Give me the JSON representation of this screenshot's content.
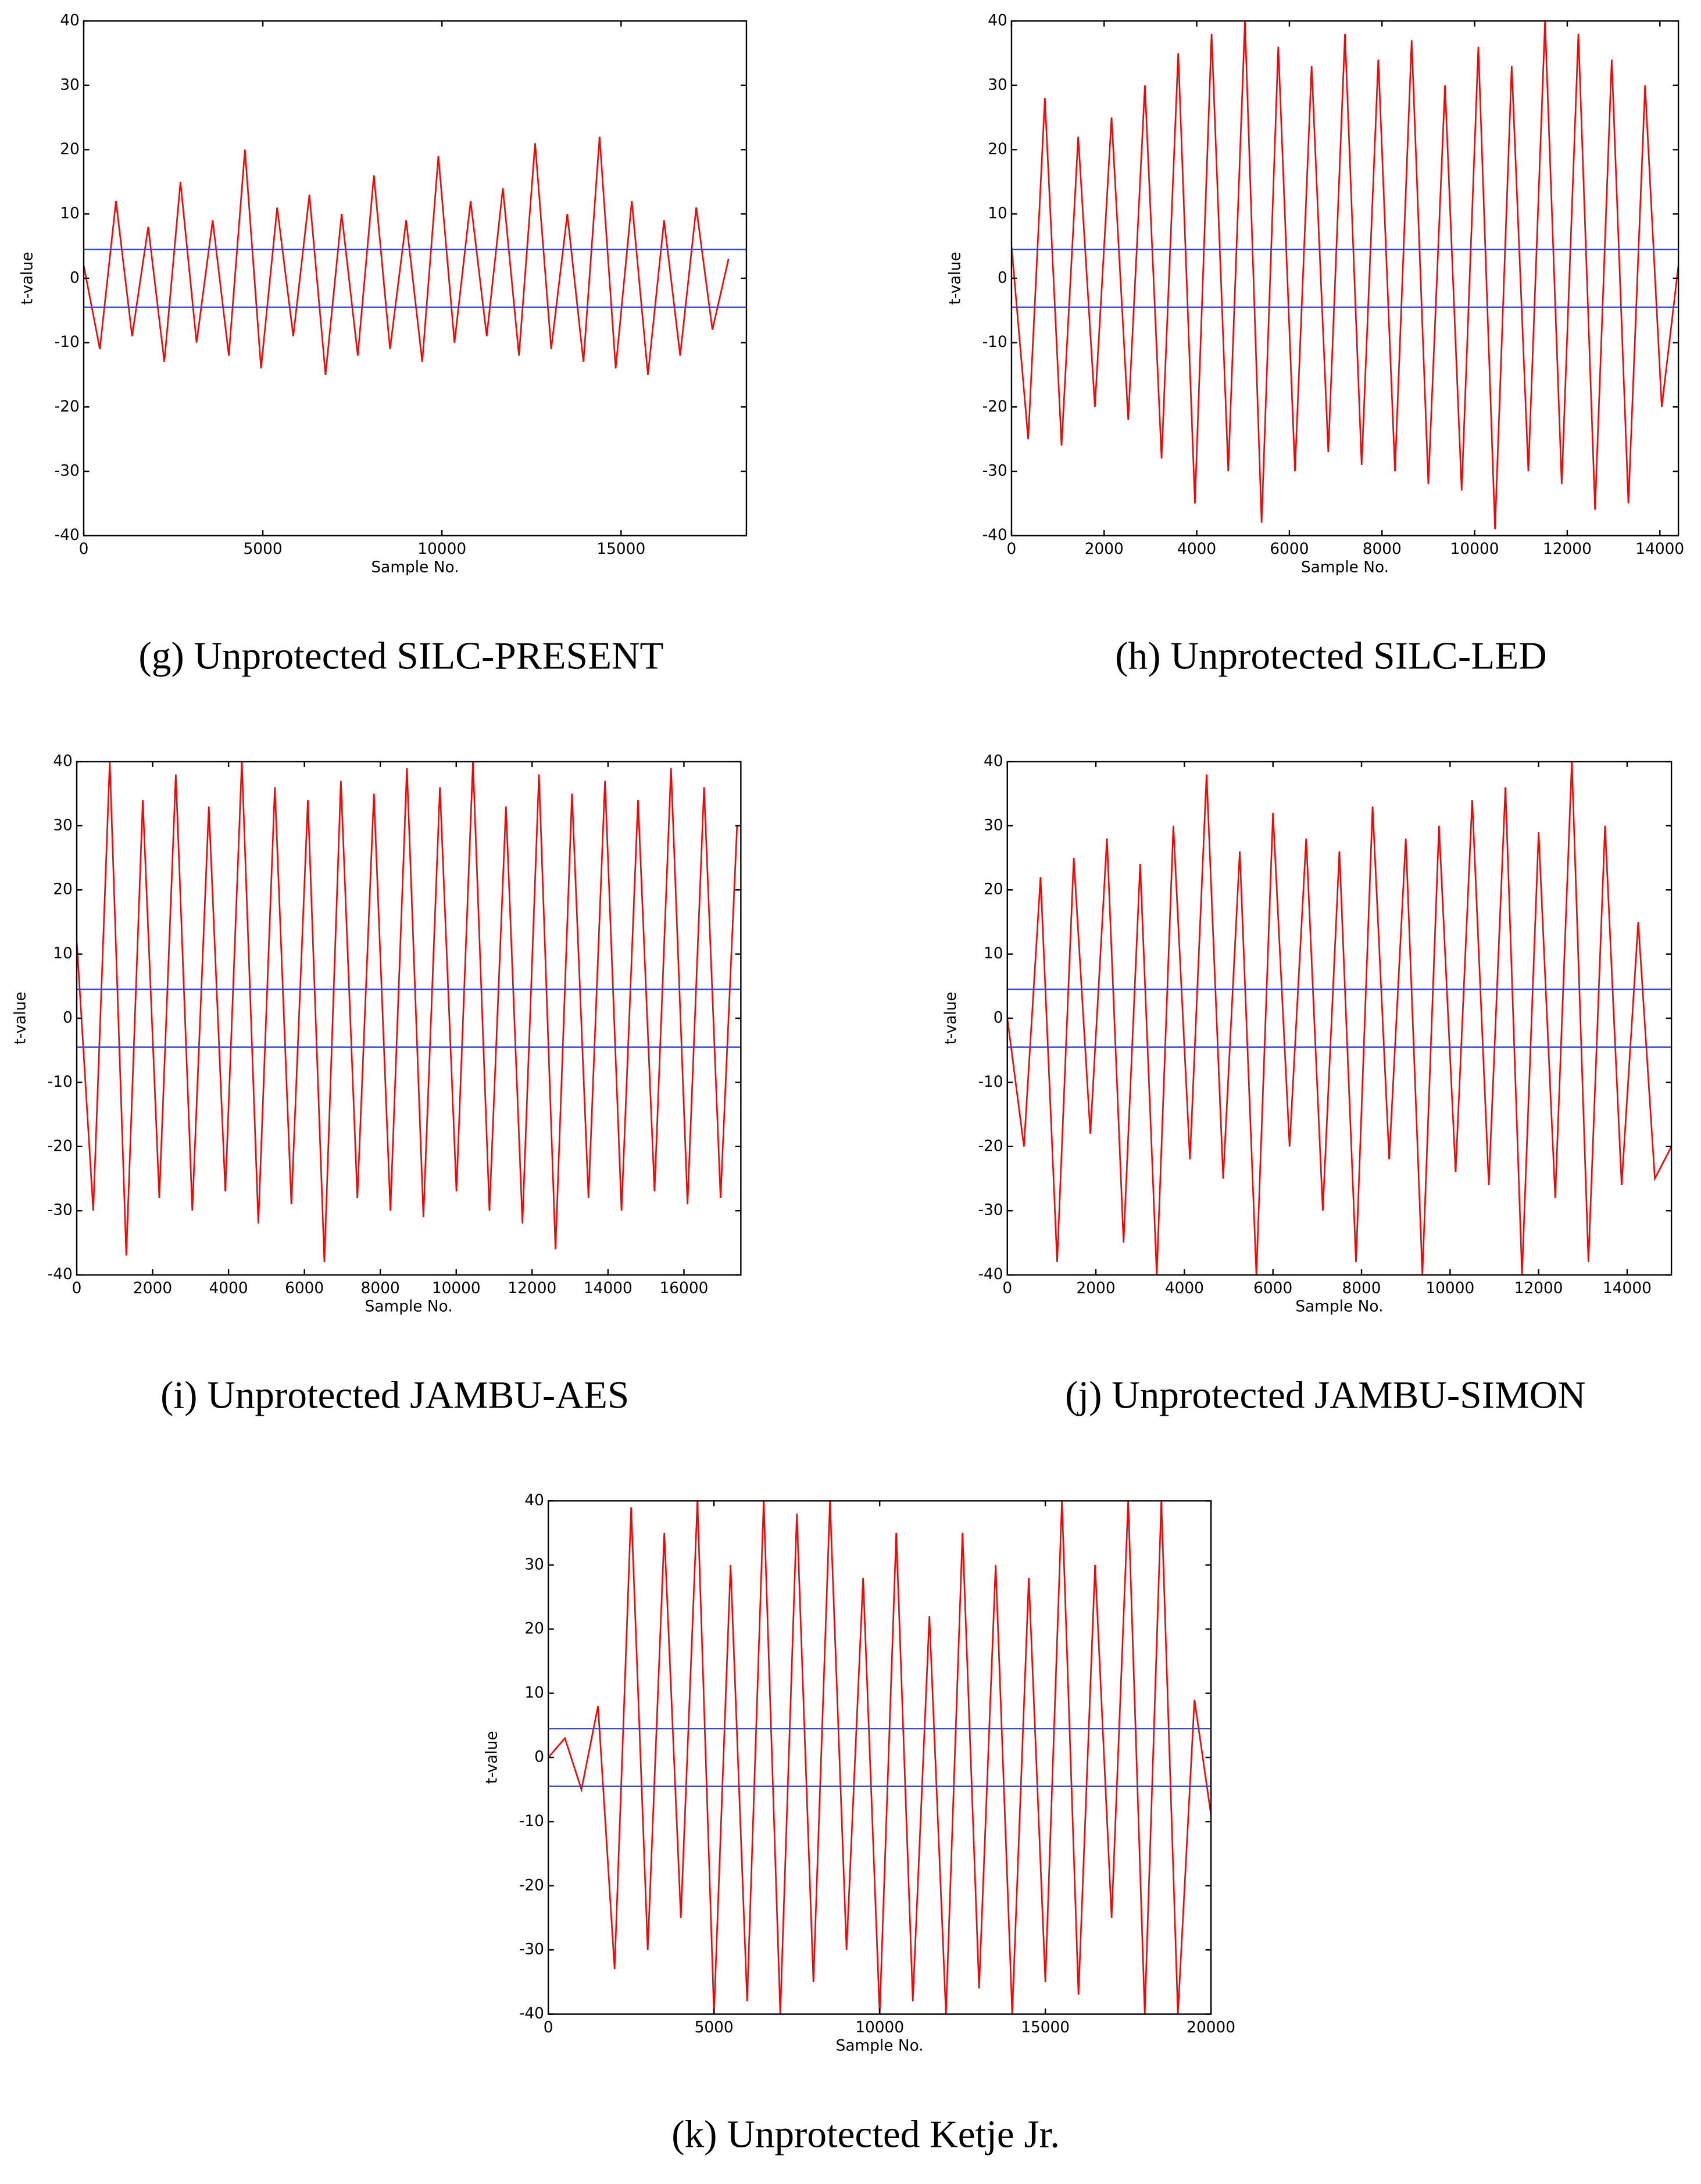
{
  "chart_data": [
    {
      "type": "line",
      "title": "(g) Unprotected SILC-PRESENT",
      "x_label": "Sample No.",
      "y_label": "t-value",
      "xlim": [
        0,
        18500
      ],
      "xticks": [
        0,
        5000,
        10000,
        15000
      ],
      "ylim": [
        -40,
        40
      ],
      "yticks": [
        -40,
        -30,
        -20,
        -10,
        0,
        10,
        20,
        30,
        40
      ],
      "thresholds": [
        4.5,
        -4.5
      ],
      "threshold_color": "#3344cc",
      "x": [
        0,
        450,
        900,
        1350,
        1800,
        2250,
        2700,
        3150,
        3600,
        4050,
        4500,
        4950,
        5400,
        5850,
        6300,
        6750,
        7200,
        7650,
        8100,
        8550,
        9000,
        9450,
        9900,
        10350,
        10800,
        11250,
        11700,
        12150,
        12600,
        13050,
        13500,
        13950,
        14400,
        14850,
        15300,
        15750,
        16200,
        16650,
        17100,
        17550,
        18000
      ],
      "series": [
        {
          "color": "#ff0000",
          "values": [
            2,
            -11,
            12,
            -9,
            8,
            -13,
            15,
            -10,
            9,
            -12,
            20,
            -14,
            11,
            -9,
            13,
            -15,
            10,
            -12,
            16,
            -11,
            9,
            -13,
            19,
            -10,
            12,
            -9,
            14,
            -12,
            21,
            -11,
            10,
            -13,
            22,
            -14,
            12,
            -15,
            9,
            -12,
            11,
            -8,
            3
          ]
        }
      ]
    },
    {
      "type": "line",
      "title": "(h) Unprotected SILC-LED",
      "x_label": "Sample No.",
      "y_label": "t-value",
      "xlim": [
        0,
        14400
      ],
      "xticks": [
        0,
        2000,
        4000,
        6000,
        8000,
        10000,
        12000,
        14000
      ],
      "ylim": [
        -40,
        40
      ],
      "yticks": [
        -40,
        -30,
        -20,
        -10,
        0,
        10,
        20,
        30,
        40
      ],
      "thresholds": [
        4.5,
        -4.5
      ],
      "threshold_color": "#3344cc",
      "x": [
        0,
        360,
        720,
        1080,
        1440,
        1800,
        2160,
        2520,
        2880,
        3240,
        3600,
        3960,
        4320,
        4680,
        5040,
        5400,
        5760,
        6120,
        6480,
        6840,
        7200,
        7560,
        7920,
        8280,
        8640,
        9000,
        9360,
        9720,
        10080,
        10440,
        10800,
        11160,
        11520,
        11880,
        12240,
        12600,
        12960,
        13320,
        13680,
        14040,
        14400
      ],
      "series": [
        {
          "color": "#ff0000",
          "values": [
            5,
            -25,
            28,
            -26,
            22,
            -20,
            25,
            -22,
            30,
            -28,
            35,
            -35,
            38,
            -30,
            40,
            -38,
            36,
            -30,
            33,
            -27,
            38,
            -29,
            34,
            -30,
            37,
            -32,
            30,
            -33,
            36,
            -39,
            33,
            -30,
            40,
            -32,
            38,
            -36,
            34,
            -35,
            30,
            -20,
            2
          ]
        }
      ]
    },
    {
      "type": "line",
      "title": "(i) Unprotected JAMBU-AES",
      "x_label": "Sample No.",
      "y_label": "t-value",
      "xlim": [
        0,
        17500
      ],
      "xticks": [
        0,
        2000,
        4000,
        6000,
        8000,
        10000,
        12000,
        14000,
        16000
      ],
      "ylim": [
        -40,
        40
      ],
      "yticks": [
        -40,
        -30,
        -20,
        -10,
        0,
        10,
        20,
        30,
        40
      ],
      "thresholds": [
        4.5,
        -4.5
      ],
      "threshold_color": "#3344cc",
      "x": [
        0,
        435,
        870,
        1305,
        1740,
        2175,
        2610,
        3045,
        3480,
        3915,
        4350,
        4785,
        5220,
        5655,
        6090,
        6525,
        6960,
        7395,
        7830,
        8265,
        8700,
        9135,
        9570,
        10005,
        10440,
        10875,
        11310,
        11745,
        12180,
        12615,
        13050,
        13485,
        13920,
        14355,
        14790,
        15225,
        15660,
        16095,
        16530,
        16965,
        17400
      ],
      "series": [
        {
          "color": "#ff0000",
          "values": [
            12,
            -30,
            40,
            -37,
            34,
            -28,
            38,
            -30,
            33,
            -27,
            40,
            -32,
            36,
            -29,
            34,
            -38,
            37,
            -28,
            35,
            -30,
            39,
            -31,
            36,
            -27,
            40,
            -30,
            33,
            -32,
            38,
            -36,
            35,
            -28,
            37,
            -30,
            34,
            -27,
            39,
            -29,
            36,
            -28,
            30
          ]
        }
      ]
    },
    {
      "type": "line",
      "title": "(j) Unprotected JAMBU-SIMON",
      "x_label": "Sample No.",
      "y_label": "t-value",
      "xlim": [
        0,
        15000
      ],
      "xticks": [
        0,
        2000,
        4000,
        6000,
        8000,
        10000,
        12000,
        14000
      ],
      "ylim": [
        -40,
        40
      ],
      "yticks": [
        -40,
        -30,
        -20,
        -10,
        0,
        10,
        20,
        30,
        40
      ],
      "thresholds": [
        4.5,
        -4.5
      ],
      "threshold_color": "#3344cc",
      "x": [
        0,
        375,
        750,
        1125,
        1500,
        1875,
        2250,
        2625,
        3000,
        3375,
        3750,
        4125,
        4500,
        4875,
        5250,
        5625,
        6000,
        6375,
        6750,
        7125,
        7500,
        7875,
        8250,
        8625,
        9000,
        9375,
        9750,
        10125,
        10500,
        10875,
        11250,
        11625,
        12000,
        12375,
        12750,
        13125,
        13500,
        13875,
        14250,
        14625,
        15000
      ],
      "series": [
        {
          "color": "#ff0000",
          "values": [
            0,
            -20,
            22,
            -38,
            25,
            -18,
            28,
            -35,
            24,
            -40,
            30,
            -22,
            38,
            -25,
            26,
            -40,
            32,
            -20,
            28,
            -30,
            26,
            -38,
            33,
            -22,
            28,
            -40,
            30,
            -24,
            34,
            -26,
            36,
            -40,
            29,
            -28,
            40,
            -38,
            30,
            -26,
            15,
            -25,
            -20
          ]
        }
      ]
    },
    {
      "type": "line",
      "title": "(k) Unprotected Ketje Jr.",
      "x_label": "Sample No.",
      "y_label": "t-value",
      "xlim": [
        0,
        20000
      ],
      "xticks": [
        0,
        5000,
        10000,
        15000,
        20000
      ],
      "ylim": [
        -40,
        40
      ],
      "yticks": [
        -40,
        -30,
        -20,
        -10,
        0,
        10,
        20,
        30,
        40
      ],
      "thresholds": [
        4.5,
        -4.5
      ],
      "threshold_color": "#3344cc",
      "x": [
        0,
        500,
        1000,
        1500,
        2000,
        2500,
        3000,
        3500,
        4000,
        4500,
        5000,
        5500,
        6000,
        6500,
        7000,
        7500,
        8000,
        8500,
        9000,
        9500,
        10000,
        10500,
        11000,
        11500,
        12000,
        12500,
        13000,
        13500,
        14000,
        14500,
        15000,
        15500,
        16000,
        16500,
        17000,
        17500,
        18000,
        18500,
        19000,
        19500,
        20000
      ],
      "series": [
        {
          "color": "#ff0000",
          "values": [
            0,
            3,
            -5,
            8,
            -33,
            39,
            -30,
            35,
            -25,
            40,
            -40,
            30,
            -38,
            40,
            -40,
            38,
            -35,
            40,
            -30,
            28,
            -40,
            35,
            -38,
            22,
            -40,
            35,
            -36,
            30,
            -40,
            28,
            -35,
            40,
            -37,
            30,
            -25,
            40,
            -40,
            40,
            -40,
            9,
            -9
          ]
        }
      ]
    }
  ]
}
